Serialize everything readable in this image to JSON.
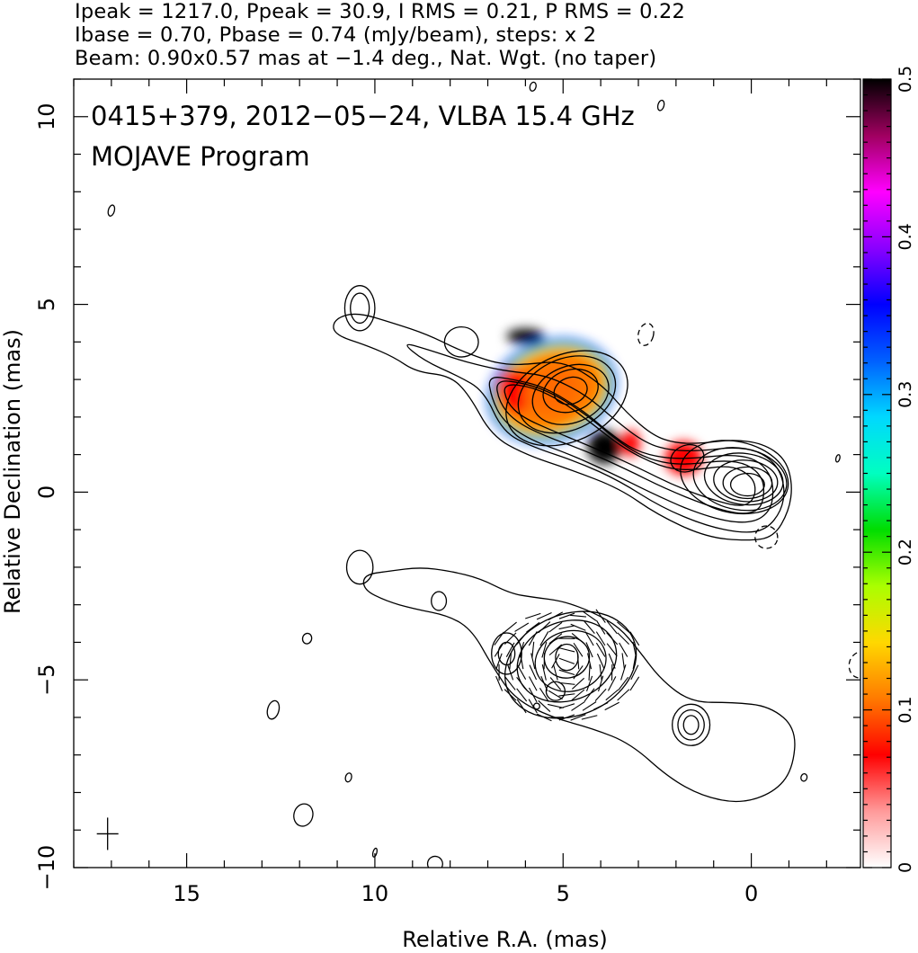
{
  "header": {
    "line1": "Ipeak = 1217.0, Ppeak = 30.9, I RMS = 0.21, P RMS = 0.22",
    "line2": "Ibase = 0.70, Pbase = 0.74 (mJy/beam), steps: x 2",
    "line3": "Beam: 0.90x0.57 mas at −1.4 deg., Nat. Wgt. (no taper)"
  },
  "chart_data": {
    "type": "contour",
    "title": "0415+379, 2012−05−24, VLBA 15.4 GHz",
    "subtitle": "MOJAVE Program",
    "xlabel": "Relative R.A. (mas)",
    "ylabel": "Relative Declination (mas)",
    "xlim": [
      18.0,
      -2.9
    ],
    "ylim": [
      -10.0,
      11.0
    ],
    "x_ticks": [
      15,
      10,
      5,
      0
    ],
    "x_tick_labels": [
      "15",
      "10",
      "5",
      "0"
    ],
    "y_ticks": [
      10,
      5,
      0,
      -5,
      -10
    ],
    "y_tick_labels": [
      "10",
      "5",
      "0",
      "−5",
      "−10"
    ],
    "colorbar": {
      "range": [
        0,
        0.5
      ],
      "ticks": [
        0,
        0.1,
        0.2,
        0.3,
        0.4,
        0.5
      ],
      "tick_labels": [
        "0",
        "0.1",
        "0.2",
        "0.3",
        "0.4",
        "0.5"
      ],
      "colors": [
        "#ffffff",
        "#ff9a9a",
        "#ff0000",
        "#ff7a00",
        "#ffd800",
        "#aaff00",
        "#00dd00",
        "#00ffc0",
        "#00d8ff",
        "#0060ff",
        "#0000ff",
        "#8a00ff",
        "#ff00ff",
        "#a00060",
        "#000000"
      ]
    },
    "beam": {
      "major": 0.9,
      "minor": 0.57,
      "pa_deg": -1.4
    },
    "cross_marker": {
      "x": 17.1,
      "y": -9.1
    },
    "upper_map": {
      "core": {
        "x": 0.1,
        "y": 0.2
      },
      "contour_ellipses": [
        {
          "x": 0.1,
          "y": 0.2,
          "a": 0.45,
          "b": 0.3,
          "angle": 0
        },
        {
          "x": 0.1,
          "y": 0.25,
          "a": 0.65,
          "b": 0.42,
          "angle": 0
        },
        {
          "x": 0.15,
          "y": 0.3,
          "a": 0.85,
          "b": 0.55,
          "angle": 5
        },
        {
          "x": 0.2,
          "y": 0.35,
          "a": 1.05,
          "b": 0.68,
          "angle": 8
        },
        {
          "x": 0.3,
          "y": 0.35,
          "a": 1.25,
          "b": 0.82,
          "angle": 10
        },
        {
          "x": 0.45,
          "y": 0.4,
          "a": 1.45,
          "b": 0.95,
          "angle": 12
        },
        {
          "x": 4.8,
          "y": 2.7,
          "a": 0.45,
          "b": 0.35,
          "angle": -20
        },
        {
          "x": 4.8,
          "y": 2.7,
          "a": 0.75,
          "b": 0.55,
          "angle": -20
        },
        {
          "x": 4.8,
          "y": 2.6,
          "a": 1.05,
          "b": 0.75,
          "angle": -22
        },
        {
          "x": 4.9,
          "y": 2.6,
          "a": 1.35,
          "b": 0.95,
          "angle": -24
        },
        {
          "x": 4.9,
          "y": 2.5,
          "a": 1.7,
          "b": 1.15,
          "angle": -25
        },
        {
          "x": 1.7,
          "y": 0.9,
          "a": 0.45,
          "b": 0.35,
          "angle": -20
        },
        {
          "x": 7.7,
          "y": 4.0,
          "a": 0.45,
          "b": 0.4,
          "angle": 0
        },
        {
          "x": 10.4,
          "y": 4.9,
          "a": 0.25,
          "b": 0.4,
          "angle": 0
        },
        {
          "x": 10.4,
          "y": 4.9,
          "a": 0.4,
          "b": 0.6,
          "angle": 0
        }
      ],
      "envelopes": [
        [
          [
            11.1,
            4.6
          ],
          [
            10.5,
            4.8
          ],
          [
            9.5,
            4.5
          ],
          [
            8.6,
            4.2
          ],
          [
            7.8,
            3.8
          ],
          [
            7.0,
            3.5
          ],
          [
            6.5,
            3.4
          ],
          [
            6.0,
            3.4
          ],
          [
            5.0,
            3.5
          ],
          [
            4.0,
            2.9
          ],
          [
            3.3,
            2.1
          ],
          [
            2.6,
            1.5
          ],
          [
            2.0,
            1.3
          ],
          [
            1.3,
            1.3
          ],
          [
            0.5,
            1.4
          ],
          [
            -0.3,
            1.3
          ],
          [
            -0.9,
            0.9
          ],
          [
            -1.1,
            0.2
          ],
          [
            -1.0,
            -0.5
          ],
          [
            -0.6,
            -1.2
          ],
          [
            0.1,
            -1.3
          ],
          [
            1.2,
            -1.2
          ],
          [
            2.5,
            -0.6
          ],
          [
            3.5,
            0.1
          ],
          [
            4.8,
            0.6
          ],
          [
            6.0,
            1.0
          ],
          [
            6.9,
            1.5
          ],
          [
            7.5,
            2.6
          ],
          [
            8.0,
            3.1
          ],
          [
            8.9,
            3.2
          ],
          [
            9.5,
            3.6
          ],
          [
            10.2,
            3.9
          ],
          [
            11.1,
            4.2
          ]
        ],
        [
          [
            9.3,
            4.0
          ],
          [
            8.6,
            3.8
          ],
          [
            7.7,
            3.5
          ],
          [
            6.9,
            3.3
          ],
          [
            6.3,
            3.2
          ],
          [
            5.4,
            3.1
          ],
          [
            4.4,
            2.6
          ],
          [
            3.6,
            1.9
          ],
          [
            2.8,
            1.3
          ],
          [
            2.1,
            1.1
          ],
          [
            1.3,
            1.1
          ],
          [
            0.5,
            1.2
          ],
          [
            -0.2,
            1.1
          ],
          [
            -0.7,
            0.7
          ],
          [
            -0.9,
            0.1
          ],
          [
            -0.8,
            -0.5
          ],
          [
            -0.4,
            -1.0
          ],
          [
            0.2,
            -1.1
          ],
          [
            1.2,
            -0.9
          ],
          [
            2.4,
            -0.4
          ],
          [
            3.5,
            0.3
          ],
          [
            4.6,
            0.8
          ],
          [
            5.8,
            1.2
          ],
          [
            6.6,
            1.6
          ],
          [
            7.1,
            2.7
          ],
          [
            7.8,
            3.1
          ],
          [
            8.7,
            3.5
          ]
        ],
        [
          [
            7.0,
            3.1
          ],
          [
            6.3,
            3.0
          ],
          [
            5.5,
            2.8
          ],
          [
            4.5,
            2.2
          ],
          [
            3.8,
            1.6
          ],
          [
            3.1,
            1.1
          ],
          [
            2.3,
            0.9
          ],
          [
            1.5,
            0.9
          ],
          [
            0.6,
            1.0
          ],
          [
            -0.1,
            0.9
          ],
          [
            -0.5,
            0.5
          ],
          [
            -0.6,
            0.0
          ],
          [
            -0.5,
            -0.5
          ],
          [
            -0.1,
            -0.8
          ],
          [
            0.6,
            -0.8
          ],
          [
            1.6,
            -0.5
          ],
          [
            2.7,
            0.0
          ],
          [
            3.7,
            0.5
          ],
          [
            4.8,
            1.0
          ],
          [
            5.9,
            1.4
          ],
          [
            6.6,
            1.9
          ],
          [
            6.9,
            2.5
          ]
        ],
        [
          [
            6.8,
            3.0
          ],
          [
            6.0,
            2.9
          ],
          [
            5.2,
            2.6
          ],
          [
            4.3,
            2.0
          ],
          [
            3.6,
            1.4
          ],
          [
            2.9,
            0.95
          ],
          [
            2.2,
            0.75
          ],
          [
            1.5,
            0.75
          ],
          [
            0.7,
            0.85
          ],
          [
            0.1,
            0.75
          ],
          [
            -0.3,
            0.4
          ],
          [
            -0.35,
            -0.1
          ],
          [
            -0.2,
            -0.5
          ],
          [
            0.3,
            -0.6
          ],
          [
            1.2,
            -0.35
          ],
          [
            2.3,
            0.1
          ],
          [
            3.3,
            0.6
          ],
          [
            4.4,
            1.1
          ],
          [
            5.5,
            1.5
          ],
          [
            6.3,
            1.9
          ],
          [
            6.7,
            2.4
          ]
        ],
        [
          [
            6.6,
            2.9
          ],
          [
            5.8,
            2.8
          ],
          [
            5.0,
            2.4
          ],
          [
            4.2,
            1.8
          ],
          [
            3.5,
            1.25
          ],
          [
            2.8,
            0.85
          ],
          [
            2.1,
            0.6
          ],
          [
            1.4,
            0.6
          ],
          [
            0.7,
            0.7
          ],
          [
            0.25,
            0.6
          ],
          [
            -0.1,
            0.3
          ],
          [
            -0.1,
            -0.15
          ],
          [
            0.2,
            -0.4
          ],
          [
            0.9,
            -0.25
          ],
          [
            2.0,
            0.15
          ],
          [
            3.0,
            0.65
          ],
          [
            4.1,
            1.15
          ],
          [
            5.2,
            1.6
          ],
          [
            6.1,
            2.0
          ],
          [
            6.5,
            2.4
          ]
        ]
      ],
      "polarization_regions": [
        {
          "x": 5.3,
          "y": 2.7,
          "a": 1.4,
          "b": 1.0,
          "angle": -20,
          "value": 0.1
        },
        {
          "x": 6.3,
          "y": 2.7,
          "a": 0.45,
          "b": 0.6,
          "angle": 0,
          "value": 0.06
        },
        {
          "x": 3.9,
          "y": 1.2,
          "a": 0.45,
          "b": 0.45,
          "angle": 0,
          "value": 0.5
        },
        {
          "x": 6.0,
          "y": 4.15,
          "a": 0.5,
          "b": 0.2,
          "angle": 0,
          "value": 0.5
        },
        {
          "x": 3.2,
          "y": 1.3,
          "a": 0.25,
          "b": 0.35,
          "angle": 0,
          "value": 0.06
        },
        {
          "x": 1.8,
          "y": 0.9,
          "a": 0.5,
          "b": 0.45,
          "angle": 0,
          "value": 0.06
        }
      ]
    },
    "lower_map": {
      "envelope": [
        [
          10.3,
          -2.2
        ],
        [
          9.6,
          -2.1
        ],
        [
          8.8,
          -2.0
        ],
        [
          8.0,
          -2.1
        ],
        [
          7.2,
          -2.3
        ],
        [
          6.4,
          -2.7
        ],
        [
          5.8,
          -2.8
        ],
        [
          5.0,
          -2.9
        ],
        [
          4.2,
          -3.2
        ],
        [
          3.5,
          -3.6
        ],
        [
          3.0,
          -4.2
        ],
        [
          2.4,
          -5.0
        ],
        [
          1.6,
          -5.6
        ],
        [
          0.5,
          -5.6
        ],
        [
          -0.5,
          -5.7
        ],
        [
          -1.2,
          -6.3
        ],
        [
          -1.1,
          -7.4
        ],
        [
          -0.6,
          -8.0
        ],
        [
          0.3,
          -8.3
        ],
        [
          1.3,
          -8.1
        ],
        [
          2.2,
          -7.6
        ],
        [
          3.2,
          -6.7
        ],
        [
          4.2,
          -6.3
        ],
        [
          5.3,
          -6.0
        ],
        [
          6.3,
          -5.5
        ],
        [
          6.9,
          -4.6
        ],
        [
          7.4,
          -3.7
        ],
        [
          8.0,
          -3.3
        ],
        [
          9.0,
          -3.1
        ],
        [
          9.7,
          -2.9
        ],
        [
          10.3,
          -2.6
        ]
      ],
      "contour_ellipses": [
        {
          "x": 4.9,
          "y": -4.4,
          "a": 0.3,
          "b": 0.35,
          "angle": 0
        },
        {
          "x": 4.9,
          "y": -4.4,
          "a": 0.6,
          "b": 0.55,
          "angle": -10
        },
        {
          "x": 4.8,
          "y": -4.5,
          "a": 0.95,
          "b": 0.8,
          "angle": -15
        },
        {
          "x": 4.9,
          "y": -4.5,
          "a": 1.35,
          "b": 1.05,
          "angle": -20
        },
        {
          "x": 4.8,
          "y": -4.6,
          "a": 1.8,
          "b": 1.35,
          "angle": -22
        },
        {
          "x": 6.5,
          "y": -4.3,
          "a": 0.22,
          "b": 0.3,
          "angle": 0
        },
        {
          "x": 6.5,
          "y": -4.3,
          "a": 0.4,
          "b": 0.55,
          "angle": 0
        },
        {
          "x": 5.2,
          "y": -5.3,
          "a": 0.25,
          "b": 0.25,
          "angle": 0
        },
        {
          "x": 1.6,
          "y": -6.2,
          "a": 0.2,
          "b": 0.25,
          "angle": 0
        },
        {
          "x": 1.6,
          "y": -6.2,
          "a": 0.35,
          "b": 0.4,
          "angle": 0
        },
        {
          "x": 1.6,
          "y": -6.2,
          "a": 0.5,
          "b": 0.55,
          "angle": 0
        },
        {
          "x": 8.3,
          "y": -2.9,
          "a": 0.2,
          "b": 0.25,
          "angle": 0
        },
        {
          "x": 10.4,
          "y": -2.0,
          "a": 0.35,
          "b": 0.45,
          "angle": 0
        }
      ],
      "evpa_field": {
        "x_range": [
          7.0,
          2.8
        ],
        "y_range": [
          -3.0,
          -6.0
        ],
        "spacing": 0.3
      }
    },
    "isolated_contours": [
      {
        "x": 5.8,
        "y": 10.8,
        "a": 0.08,
        "b": 0.12
      },
      {
        "x": 2.4,
        "y": 10.3,
        "a": 0.08,
        "b": 0.14
      },
      {
        "x": 17.0,
        "y": 7.5,
        "a": 0.08,
        "b": 0.15
      },
      {
        "x": 2.8,
        "y": 4.2,
        "a": 0.2,
        "b": 0.3
      },
      {
        "x": 11.8,
        "y": -3.9,
        "a": 0.12,
        "b": 0.14
      },
      {
        "x": 12.7,
        "y": -5.8,
        "a": 0.15,
        "b": 0.25
      },
      {
        "x": 10.7,
        "y": -7.6,
        "a": 0.08,
        "b": 0.12
      },
      {
        "x": 11.9,
        "y": -8.6,
        "a": 0.25,
        "b": 0.3
      },
      {
        "x": 10.0,
        "y": -9.6,
        "a": 0.05,
        "b": 0.12
      },
      {
        "x": 8.4,
        "y": -9.9,
        "a": 0.2,
        "b": 0.2
      },
      {
        "x": 5.7,
        "y": -5.7,
        "a": 0.08,
        "b": 0.08
      },
      {
        "x": -0.4,
        "y": -1.2,
        "a": 0.3,
        "b": 0.3
      },
      {
        "x": -2.3,
        "y": 0.9,
        "a": 0.05,
        "b": 0.1
      },
      {
        "x": -2.9,
        "y": -4.6,
        "a": 0.3,
        "b": 0.35
      },
      {
        "x": -1.4,
        "y": -7.6,
        "a": 0.08,
        "b": 0.1
      }
    ]
  }
}
